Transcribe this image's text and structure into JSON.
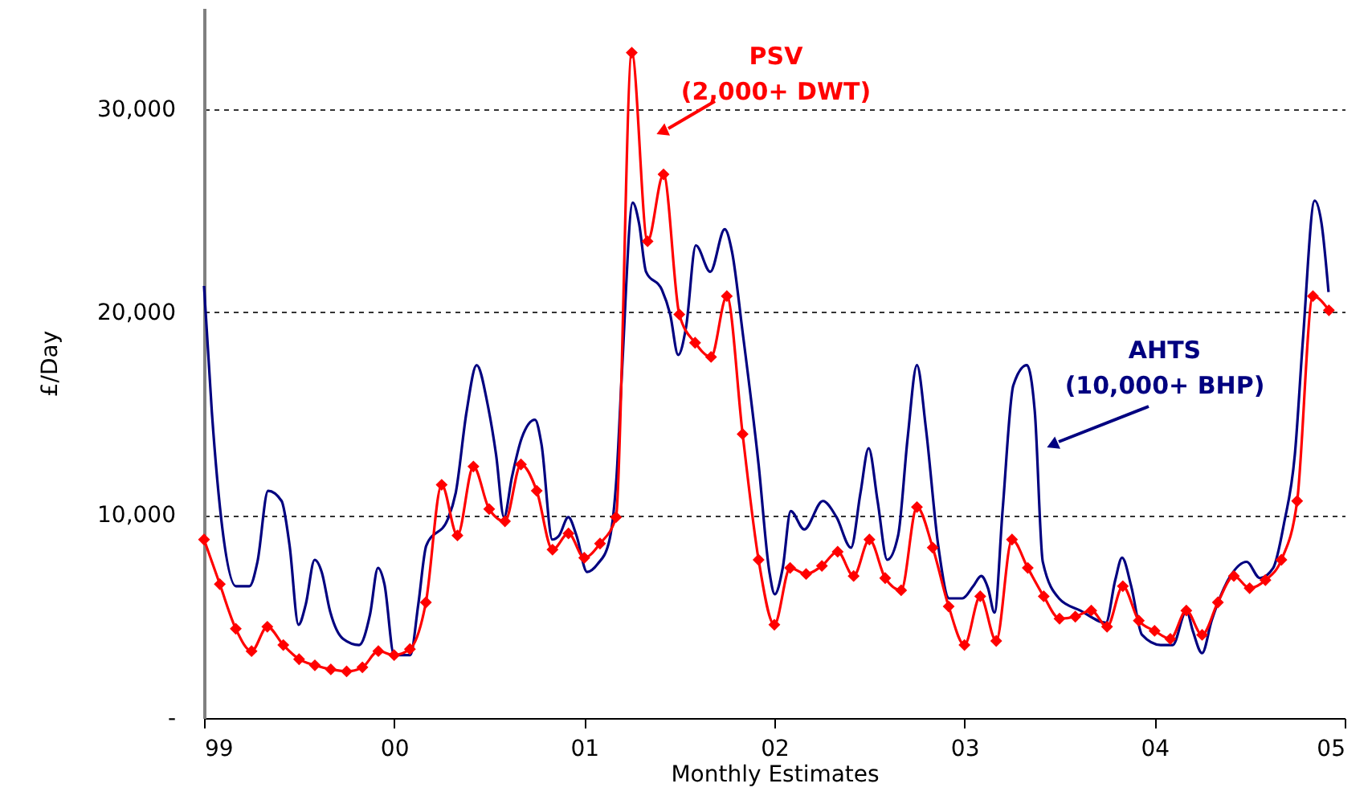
{
  "chart_data": {
    "type": "line",
    "xlabel": "Monthly Estimates",
    "ylabel": "£/Day",
    "xlim": [
      1999,
      2005
    ],
    "xticks": [
      {
        "value": 1999,
        "label": "99"
      },
      {
        "value": 2000,
        "label": "00"
      },
      {
        "value": 2001,
        "label": "01"
      },
      {
        "value": 2002,
        "label": "02"
      },
      {
        "value": 2003,
        "label": "03"
      },
      {
        "value": 2004,
        "label": "04"
      },
      {
        "value": 2005,
        "label": "05"
      }
    ],
    "ylim": [
      0,
      35000
    ],
    "yticks": [
      {
        "value": 0,
        "label": "-"
      },
      {
        "value": 10000,
        "label": "10,000"
      },
      {
        "value": 20000,
        "label": "20,000"
      },
      {
        "value": 30000,
        "label": "30,000"
      }
    ],
    "grid": "y",
    "series": [
      {
        "color": "#ff0000",
        "marker": "diamond",
        "x": [
          1999,
          1999.083,
          1999.167,
          1999.25,
          1999.333,
          1999.417,
          1999.5,
          1999.583,
          1999.667,
          1999.75,
          1999.833,
          1999.917,
          2000,
          2000.083,
          2000.167,
          2000.25,
          2000.333,
          2000.417,
          2000.5,
          2000.583,
          2000.667,
          2000.75,
          2000.833,
          2000.917,
          2001,
          2001.083,
          2001.167,
          2001.25,
          2001.333,
          2001.417,
          2001.5,
          2001.583,
          2001.667,
          2001.75,
          2001.833,
          2001.917,
          2002,
          2002.083,
          2002.167,
          2002.25,
          2002.333,
          2002.417,
          2002.5,
          2002.583,
          2002.667,
          2002.75,
          2002.833,
          2002.917,
          2003,
          2003.083,
          2003.167,
          2003.25,
          2003.333,
          2003.417,
          2003.5,
          2003.583,
          2003.667,
          2003.75,
          2003.833,
          2003.917,
          2004,
          2004.083,
          2004.167,
          2004.25,
          2004.333,
          2004.417,
          2004.5,
          2004.583,
          2004.667,
          2004.75,
          2004.833,
          2004.917
        ],
        "values": [
          8800,
          6600,
          4400,
          3300,
          4500,
          3600,
          2900,
          2600,
          2400,
          2300,
          2500,
          3300,
          3100,
          3400,
          5700,
          11500,
          9000,
          12400,
          10300,
          9700,
          12500,
          11200,
          8300,
          9100,
          7900,
          8600,
          9900,
          32800,
          23500,
          26800,
          19900,
          18500,
          17800,
          20800,
          14000,
          7800,
          4600,
          7400,
          7100,
          7500,
          8200,
          7000,
          8800,
          6900,
          6300,
          10400,
          8400,
          5500,
          3600,
          6000,
          3800,
          8800,
          7400,
          6000,
          4900,
          5000,
          5300,
          4500,
          6500,
          4800,
          4300,
          3900,
          5300,
          4100,
          5700,
          7000,
          6400,
          6800,
          7800,
          10700,
          20800,
          20100
        ]
      },
      {
        "color": "#000080",
        "marker": "none",
        "x": [
          1999,
          1999.041,
          1999.097,
          1999.168,
          1999.239,
          1999.281,
          1999.337,
          1999.408,
          1999.45,
          1999.497,
          1999.535,
          1999.582,
          1999.619,
          1999.662,
          1999.732,
          1999.816,
          1999.873,
          1999.915,
          1999.949,
          2000,
          2000.085,
          2000.127,
          2000.169,
          2000.282,
          2000.324,
          2000.381,
          2000.434,
          2000.493,
          2000.536,
          2000.578,
          2000.62,
          2000.671,
          2000.741,
          2000.775,
          2000.832,
          2000.868,
          2000.916,
          2000.959,
          2001.015,
          2001.071,
          2001.128,
          2001.17,
          2001.198,
          2001.255,
          2001.288,
          2001.325,
          2001.409,
          2001.452,
          2001.494,
          2001.536,
          2001.587,
          2001.663,
          2001.739,
          2001.777,
          2001.832,
          2001.917,
          2001.974,
          2002.002,
          2002.044,
          2002.086,
          2002.157,
          2002.255,
          2002.327,
          2002.403,
          2002.453,
          2002.496,
          2002.543,
          2002.594,
          2002.651,
          2002.701,
          2002.75,
          2002.797,
          2002.862,
          2002.919,
          2002.989,
          2003.046,
          2003.088,
          2003.124,
          2003.158,
          2003.201,
          2003.257,
          2003.328,
          2003.37,
          2003.412,
          2003.497,
          2003.609,
          2003.744,
          2003.793,
          2003.829,
          2003.877,
          2003.934,
          2004.032,
          2004.095,
          2004.168,
          2004.201,
          2004.25,
          2004.3,
          2004.399,
          2004.484,
          2004.554,
          2004.624,
          2004.681,
          2004.738,
          2004.78,
          2004.842,
          2004.878,
          2004.915
        ],
        "values": [
          21300,
          15100,
          9300,
          6500,
          6500,
          7700,
          11200,
          10700,
          8500,
          4600,
          5600,
          7800,
          7200,
          5300,
          3900,
          3600,
          5100,
          7400,
          6600,
          3100,
          3100,
          5600,
          8500,
          9800,
          11100,
          15100,
          17400,
          15400,
          13000,
          9900,
          11900,
          13800,
          14700,
          13500,
          8800,
          9000,
          9900,
          9000,
          7200,
          7600,
          8600,
          11900,
          17000,
          25400,
          24400,
          22000,
          21100,
          19900,
          17900,
          19300,
          23300,
          22000,
          24100,
          23000,
          19100,
          12500,
          7200,
          6100,
          7400,
          10200,
          9300,
          10700,
          9900,
          8400,
          11100,
          13300,
          10700,
          7800,
          9000,
          13800,
          17400,
          14300,
          8500,
          5900,
          5900,
          6500,
          7000,
          6400,
          5200,
          10300,
          16400,
          17400,
          15100,
          7700,
          5900,
          5300,
          4700,
          6800,
          7900,
          6500,
          4100,
          3600,
          3600,
          5300,
          4300,
          3200,
          4800,
          7000,
          7700,
          6900,
          7400,
          9600,
          13000,
          18600,
          25500,
          24400,
          21000
        ]
      }
    ],
    "annotations": [
      "PSV\n(2,000+ DWT)",
      "AHTS\n(10,000+ BHP)"
    ]
  }
}
